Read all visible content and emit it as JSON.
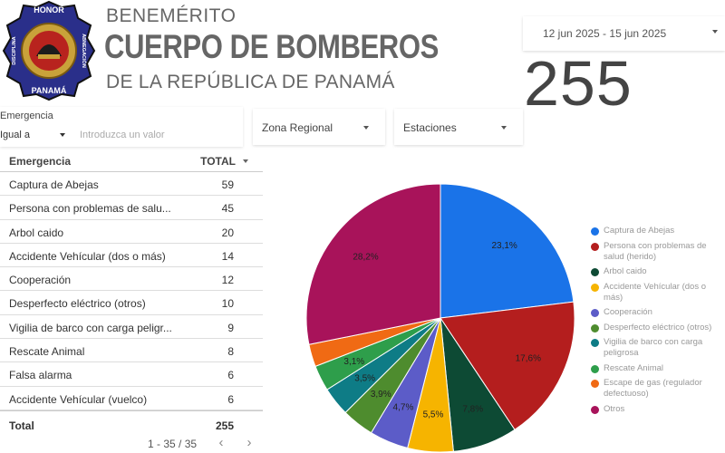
{
  "header": {
    "badge_top_text": "HONOR",
    "badge_left_text": "DISCIPLINA",
    "badge_right_text": "ABNEGACIÓN",
    "badge_bottom_text": "PANAMÁ",
    "line1": "BENEMÉRITO",
    "line2": "CUERPO DE BOMBEROS",
    "line3": "DE LA REPÚBLICA DE PANAMÁ"
  },
  "date_range": {
    "value": "12 jun 2025 - 15 jun 2025",
    "icon": "chevron-down-icon"
  },
  "scorecard": {
    "value": "255"
  },
  "filters": {
    "emergency": {
      "label": "Emergencia",
      "operator": "Igual a",
      "placeholder": "Introduzca un valor"
    },
    "zona": {
      "label": "Zona Regional"
    },
    "estaciones": {
      "label": "Estaciones"
    }
  },
  "table": {
    "headers": {
      "name": "Emergencia",
      "total": "TOTAL"
    },
    "rows": [
      {
        "name": "Captura de Abejas",
        "total": "59"
      },
      {
        "name": "Persona con problemas de salu...",
        "total": "45"
      },
      {
        "name": "Arbol caido",
        "total": "20"
      },
      {
        "name": "Accidente Vehícular (dos o más)",
        "total": "14"
      },
      {
        "name": "Cooperación",
        "total": "12"
      },
      {
        "name": "Desperfecto eléctrico (otros)",
        "total": "10"
      },
      {
        "name": "Vigilia de barco con carga peligr...",
        "total": "9"
      },
      {
        "name": "Rescate Animal",
        "total": "8"
      },
      {
        "name": "Falsa alarma",
        "total": "6"
      },
      {
        "name": "Accidente Vehícular (vuelco)",
        "total": "6"
      }
    ],
    "total_row": {
      "label": "Total",
      "value": "255"
    },
    "pagination": {
      "text": "1 - 35 / 35",
      "prev": "‹",
      "next": "›"
    }
  },
  "chart_data": {
    "type": "pie",
    "title": "",
    "legend_position": "right",
    "slices": [
      {
        "label": "Captura de Abejas",
        "value": 23.1,
        "display": "23,1%",
        "color": "#1a73e8"
      },
      {
        "label": "Persona con problemas de salud (herido)",
        "value": 17.6,
        "display": "17,6%",
        "color": "#b41e1e"
      },
      {
        "label": "Arbol caido",
        "value": 7.8,
        "display": "7,8%",
        "color": "#0d4a34"
      },
      {
        "label": "Accidente Vehícular (dos o más)",
        "value": 5.5,
        "display": "5,5%",
        "color": "#f6b400"
      },
      {
        "label": "Cooperación",
        "value": 4.7,
        "display": "4,7%",
        "color": "#5c5cc8"
      },
      {
        "label": "Desperfecto eléctrico (otros)",
        "value": 3.9,
        "display": "3,9%",
        "color": "#4e8c2e"
      },
      {
        "label": "Vigilia de barco con carga peligrosa",
        "value": 3.5,
        "display": "3,5%",
        "color": "#0e7c86"
      },
      {
        "label": "Rescate Animal",
        "value": 3.1,
        "display": "3,1%",
        "color": "#2e9e4b"
      },
      {
        "label": "Escape de gas (regulador defectuoso)",
        "value": 2.7,
        "display": "",
        "color": "#f06a14"
      },
      {
        "label": "Otros",
        "value": 28.2,
        "display": "28,2%",
        "color": "#a8135a"
      }
    ]
  }
}
